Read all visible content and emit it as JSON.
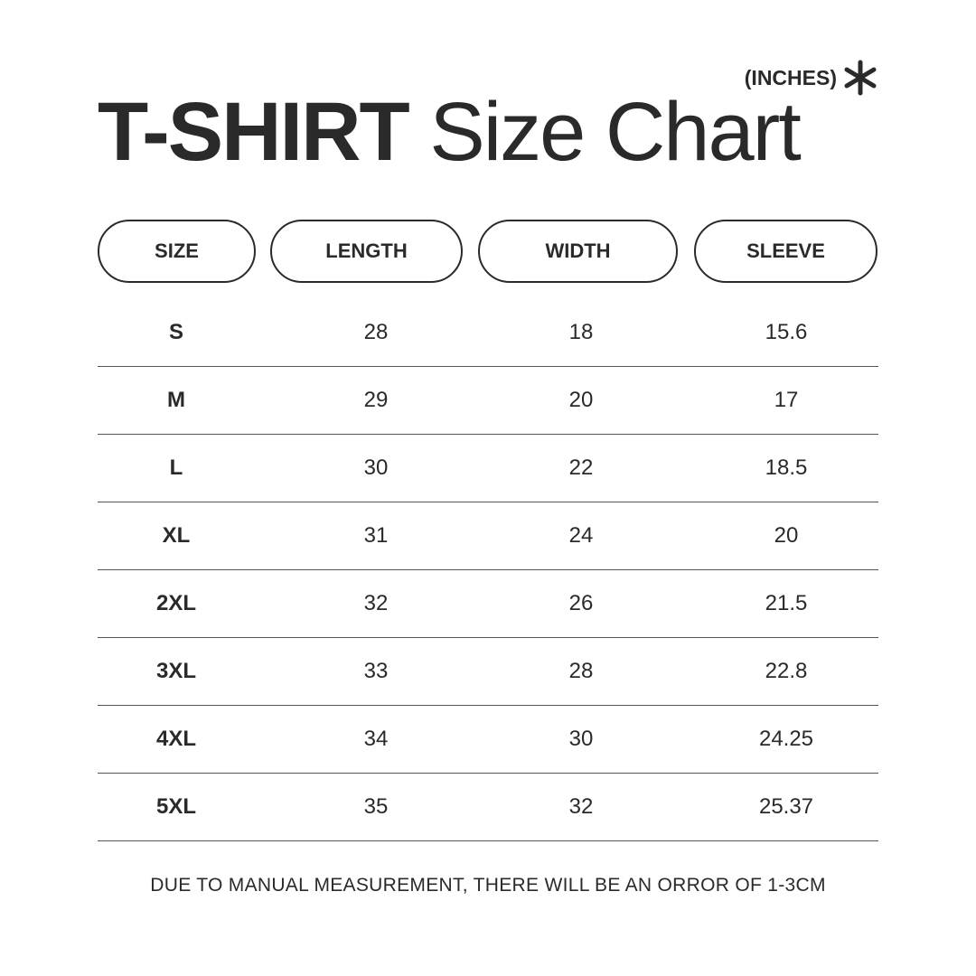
{
  "unit_label": "(INCHES)",
  "title": {
    "bold": "T-SHIRT",
    "regular": "Size Chart"
  },
  "headers": [
    "SIZE",
    "LENGTH",
    "WIDTH",
    "SLEEVE"
  ],
  "rows": [
    [
      "S",
      "28",
      "18",
      "15.6"
    ],
    [
      "M",
      "29",
      "20",
      "17"
    ],
    [
      "L",
      "30",
      "22",
      "18.5"
    ],
    [
      "XL",
      "31",
      "24",
      "20"
    ],
    [
      "2XL",
      "32",
      "26",
      "21.5"
    ],
    [
      "3XL",
      "33",
      "28",
      "22.8"
    ],
    [
      "4XL",
      "34",
      "30",
      "24.25"
    ],
    [
      "5XL",
      "35",
      "32",
      "25.37"
    ]
  ],
  "note": "DUE TO MANUAL MEASUREMENT, THERE WILL BE AN ORROR OF 1-3CM",
  "icons": {
    "unit": "asterisk-icon"
  },
  "colors": {
    "text": "#2a2a2a",
    "background": "#ffffff"
  }
}
